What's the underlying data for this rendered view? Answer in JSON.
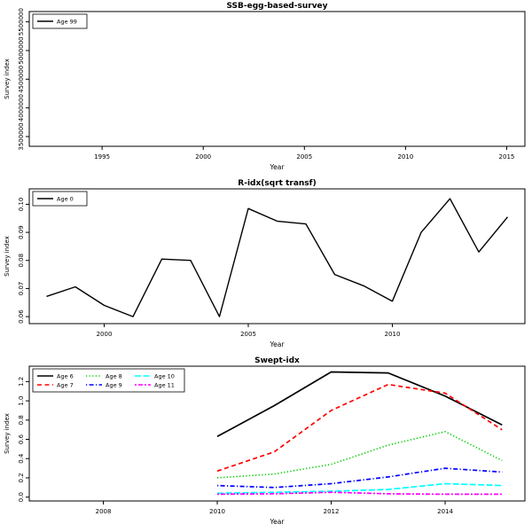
{
  "page": {
    "background": "#ffffff"
  },
  "chart_data": [
    {
      "type": "line",
      "title": "SSB-egg-based-survey",
      "xlabel": "Year",
      "ylabel": "Survey index",
      "xlim": [
        1991.4,
        2015.9
      ],
      "ylim": [
        3330000,
        5680000
      ],
      "xticks": [
        1995,
        2000,
        2005,
        2010,
        2015
      ],
      "xtick_labels": [
        "1995",
        "2000",
        "2005",
        "2010",
        "2015"
      ],
      "yticks": [
        3500000,
        4000000,
        4500000,
        5000000,
        5500000
      ],
      "ytick_labels": [
        "3500000",
        "4000000",
        "4500000",
        "5000000",
        "5500000"
      ],
      "grid": false,
      "legend": {
        "position": "top-left",
        "cols": 1,
        "entries": [
          {
            "label": "Age 99",
            "color": "#000000",
            "dash": "solid"
          }
        ]
      },
      "series": [
        {
          "name": "Age 99",
          "color": "#000000",
          "dash": "solid",
          "lw": 1.4,
          "x": [],
          "y": []
        }
      ]
    },
    {
      "type": "line",
      "title": "R-idx(sqrt transf)",
      "xlabel": "Year",
      "ylabel": "Survey index",
      "xlim": [
        1997.4,
        2014.6
      ],
      "ylim": [
        0.0575,
        0.1055
      ],
      "xticks": [
        2000,
        2005,
        2010
      ],
      "xtick_labels": [
        "2000",
        "2005",
        "2010"
      ],
      "yticks": [
        0.06,
        0.07,
        0.08,
        0.09,
        0.1
      ],
      "ytick_labels": [
        "0.06",
        "0.07",
        "0.08",
        "0.09",
        "0.10"
      ],
      "grid": false,
      "legend": {
        "position": "top-left",
        "cols": 1,
        "entries": [
          {
            "label": "Age 0",
            "color": "#000000",
            "dash": "solid"
          }
        ]
      },
      "series": [
        {
          "name": "Age 0",
          "color": "#000000",
          "dash": "solid",
          "lw": 1.4,
          "x": [
            1998,
            1999,
            2000,
            2001,
            2002,
            2003,
            2004,
            2005,
            2006,
            2007,
            2008,
            2009,
            2010,
            2011,
            2012,
            2013,
            2014
          ],
          "y": [
            0.0672,
            0.0706,
            0.064,
            0.06,
            0.0805,
            0.08,
            0.06,
            0.0985,
            0.094,
            0.093,
            0.075,
            0.071,
            0.0655,
            0.09,
            0.102,
            0.083,
            0.0955
          ]
        }
      ]
    },
    {
      "type": "line",
      "title": "Swept-idx",
      "xlabel": "Year",
      "ylabel": "Survey index",
      "xlim": [
        2006.7,
        2015.4
      ],
      "ylim": [
        -0.04,
        1.36
      ],
      "xticks": [
        2008,
        2010,
        2012,
        2014
      ],
      "xtick_labels": [
        "2008",
        "2010",
        "2012",
        "2014"
      ],
      "yticks": [
        0.0,
        0.2,
        0.4,
        0.6,
        0.8,
        1.0,
        1.2
      ],
      "ytick_labels": [
        "0.0",
        "0.2",
        "0.4",
        "0.6",
        "0.8",
        "1.0",
        "1.2"
      ],
      "grid": false,
      "legend": {
        "position": "top-left",
        "cols": 3,
        "entries": [
          {
            "label": "Age 6",
            "color": "#000000",
            "dash": "solid"
          },
          {
            "label": "Age 7",
            "color": "#FF0000",
            "dash": "dashed"
          },
          {
            "label": "Age 8",
            "color": "#00CD00",
            "dash": "dotted"
          },
          {
            "label": "Age 9",
            "color": "#0000FF",
            "dash": "dotdash"
          },
          {
            "label": "Age 10",
            "color": "#00FFFF",
            "dash": "longdash"
          },
          {
            "label": "Age 11",
            "color": "#FF00FF",
            "dash": "twodash"
          }
        ]
      },
      "series": [
        {
          "name": "Age 6",
          "color": "#000000",
          "dash": "solid",
          "lw": 1.7,
          "x": [
            2010,
            2011,
            2012,
            2013,
            2014,
            2015
          ],
          "y": [
            0.63,
            0.95,
            1.3,
            1.29,
            1.05,
            0.75
          ]
        },
        {
          "name": "Age 7",
          "color": "#FF0000",
          "dash": "dashed",
          "lw": 1.7,
          "x": [
            2010,
            2011,
            2012,
            2013,
            2014,
            2015
          ],
          "y": [
            0.27,
            0.47,
            0.9,
            1.17,
            1.08,
            0.7
          ]
        },
        {
          "name": "Age 8",
          "color": "#00CD00",
          "dash": "dotted",
          "lw": 1.7,
          "x": [
            2010,
            2011,
            2012,
            2013,
            2014,
            2015
          ],
          "y": [
            0.2,
            0.24,
            0.34,
            0.54,
            0.68,
            0.38
          ]
        },
        {
          "name": "Age 9",
          "color": "#0000FF",
          "dash": "dotdash",
          "lw": 1.7,
          "x": [
            2010,
            2011,
            2012,
            2013,
            2014,
            2015
          ],
          "y": [
            0.12,
            0.1,
            0.14,
            0.21,
            0.3,
            0.26
          ]
        },
        {
          "name": "Age 10",
          "color": "#00FFFF",
          "dash": "longdash",
          "lw": 1.7,
          "x": [
            2010,
            2011,
            2012,
            2013,
            2014,
            2015
          ],
          "y": [
            0.04,
            0.05,
            0.06,
            0.08,
            0.14,
            0.12
          ]
        },
        {
          "name": "Age 11",
          "color": "#FF00FF",
          "dash": "twodash",
          "lw": 1.7,
          "x": [
            2010,
            2011,
            2012,
            2013,
            2014,
            2015
          ],
          "y": [
            0.03,
            0.035,
            0.05,
            0.035,
            0.03,
            0.03
          ]
        }
      ]
    }
  ]
}
